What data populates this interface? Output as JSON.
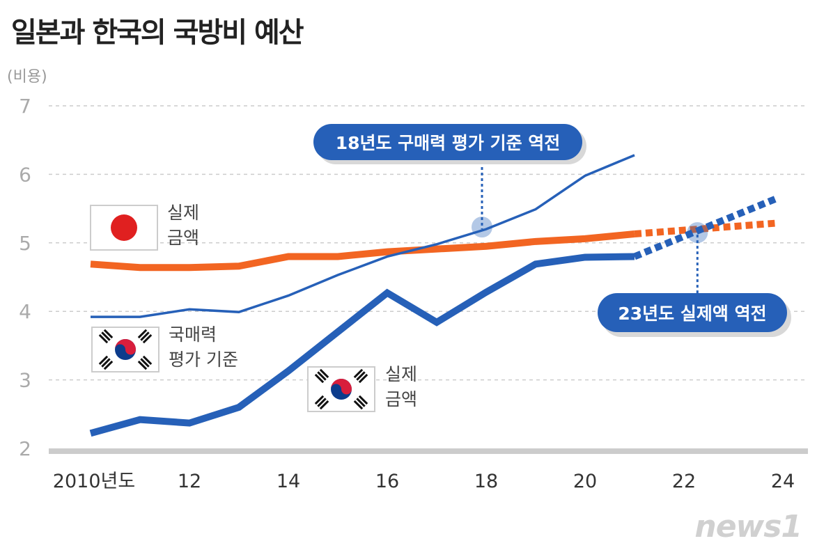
{
  "chart_data": {
    "type": "line",
    "title": "일본과 한국의 국방비 예산",
    "ylabel": "(비용)",
    "ylim": [
      2,
      7
    ],
    "yticks": [
      "2",
      "3",
      "4",
      "5",
      "6",
      "7"
    ],
    "xlim": [
      2010,
      2024
    ],
    "xticks": [
      {
        "value": 2010,
        "label": "2010년도"
      },
      {
        "value": 2012,
        "label": "12"
      },
      {
        "value": 2014,
        "label": "14"
      },
      {
        "value": 2016,
        "label": "16"
      },
      {
        "value": 2018,
        "label": "18"
      },
      {
        "value": 2020,
        "label": "20"
      },
      {
        "value": 2022,
        "label": "22"
      },
      {
        "value": 2024,
        "label": "24"
      }
    ],
    "grid": true,
    "series": [
      {
        "key": "japan_real",
        "name": "실제 금액",
        "flag": "japan",
        "color": "#f26522",
        "x": [
          2010,
          2011,
          2012,
          2013,
          2014,
          2015,
          2016,
          2017,
          2018,
          2019,
          2020,
          2021
        ],
        "y": [
          4.69,
          4.64,
          4.64,
          4.66,
          4.8,
          4.8,
          4.87,
          4.91,
          4.95,
          5.02,
          5.06,
          5.13
        ],
        "projection": {
          "x": [
            2021,
            2024
          ],
          "y": [
            5.13,
            5.29
          ]
        }
      },
      {
        "key": "korea_ppp",
        "name": "국매력 평가 기준",
        "flag": "korea",
        "color": "#2660b8",
        "x": [
          2010,
          2011,
          2012,
          2013,
          2014,
          2015,
          2016,
          2017,
          2018,
          2019,
          2020,
          2021
        ],
        "y": [
          3.92,
          3.92,
          4.03,
          3.99,
          4.23,
          4.53,
          4.8,
          4.98,
          5.2,
          5.49,
          5.98,
          6.28
        ]
      },
      {
        "key": "korea_real",
        "name": "실제 금액",
        "flag": "korea",
        "color": "#2660b8",
        "x": [
          2010,
          2011,
          2012,
          2013,
          2014,
          2015,
          2016,
          2017,
          2018,
          2019,
          2020,
          2021
        ],
        "y": [
          2.22,
          2.42,
          2.37,
          2.6,
          3.13,
          3.7,
          4.27,
          3.84,
          4.28,
          4.69,
          4.79,
          4.8
        ],
        "projection": {
          "x": [
            2021,
            2024
          ],
          "y": [
            4.8,
            5.66
          ]
        }
      }
    ],
    "annotations": [
      {
        "text": "18년도 구매력 평가 기준 역전",
        "x": 2018,
        "y": 5.2
      },
      {
        "text": "23년도 실제액 역전",
        "x": 2022.3,
        "y": 5.2
      }
    ]
  },
  "labels": {
    "japan_real": [
      "실제",
      "금액"
    ],
    "korea_ppp": [
      "국매력",
      "평가 기준"
    ],
    "korea_real": [
      "실제",
      "금액"
    ]
  },
  "logo": "news1"
}
